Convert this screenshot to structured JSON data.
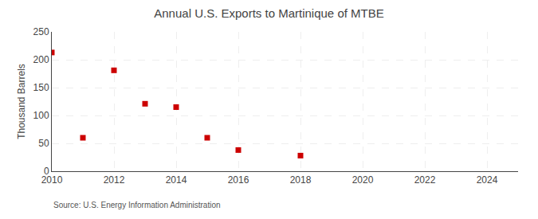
{
  "chart_data": {
    "type": "scatter",
    "title": "Annual U.S. Exports to Martinique of MTBE",
    "ylabel": "Thousand Barrels",
    "annotations": [
      "Source: U.S. Energy Information Administration"
    ],
    "x": [
      2010,
      2011,
      2012,
      2013,
      2014,
      2015,
      2016,
      2018
    ],
    "values": [
      213,
      60,
      181,
      121,
      115,
      60,
      38,
      28
    ],
    "color": "#cc0000",
    "marker": "square",
    "xlim": [
      2010,
      2025
    ],
    "xticks": [
      2010,
      2012,
      2014,
      2016,
      2018,
      2020,
      2022,
      2024
    ],
    "ylim": [
      0,
      250
    ],
    "yticks": [
      0,
      50,
      100,
      150,
      200,
      250
    ],
    "grid": true
  }
}
